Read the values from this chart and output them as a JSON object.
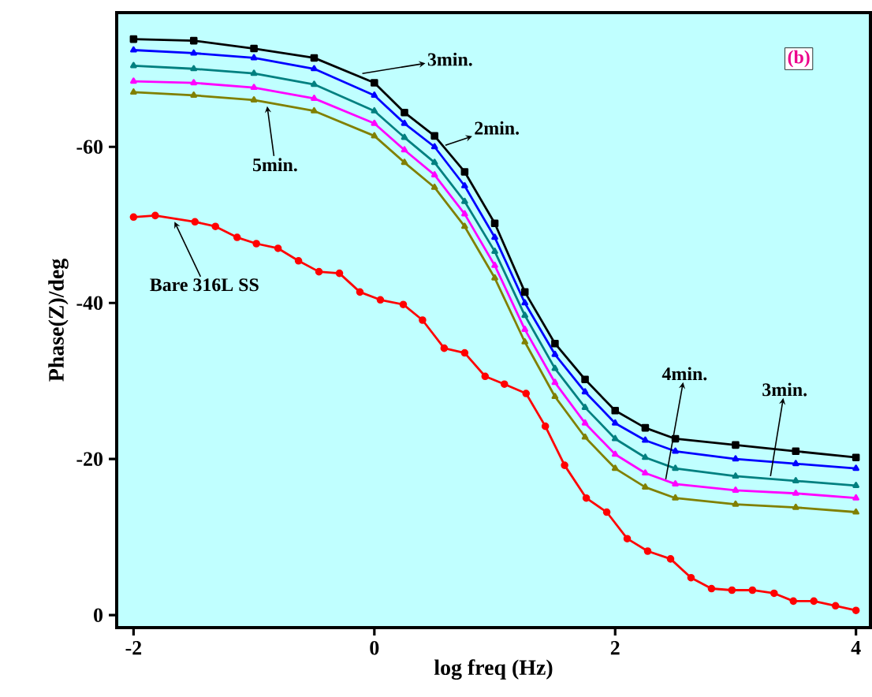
{
  "chart_data": {
    "type": "line",
    "xlabel": "log freq (Hz)",
    "ylabel": "Phase(Z)/deg",
    "x": [
      -2,
      -1.5,
      -1,
      -0.5,
      0,
      0.25,
      0.5,
      0.75,
      1,
      1.25,
      1.5,
      1.75,
      2,
      2.25,
      2.5,
      3,
      3.5,
      4
    ],
    "series": [
      {
        "color": "#000000",
        "marker": "square",
        "values": [
          -73.8,
          -73.6,
          -72.6,
          -71.4,
          -68.2,
          -64.4,
          -61.4,
          -56.8,
          -50.2,
          -41.4,
          -34.8,
          -30.2,
          -26.2,
          -24,
          -22.6,
          -21.8,
          -21,
          -20.2
        ]
      },
      {
        "color": "#0000ff",
        "marker": "triangle",
        "values": [
          -72.4,
          -72,
          -71.4,
          -70,
          -66.6,
          -63,
          -60,
          -55,
          -48.4,
          -40,
          -33.4,
          -28.6,
          -24.6,
          -22.4,
          -21,
          -20,
          -19.4,
          -18.8
        ]
      },
      {
        "color": "#008080",
        "marker": "triangle",
        "values": [
          -70.4,
          -70,
          -69.4,
          -68,
          -64.6,
          -61.2,
          -58,
          -53,
          -46.6,
          -38.4,
          -31.6,
          -26.6,
          -22.6,
          -20.2,
          -18.8,
          -17.8,
          -17.2,
          -16.6
        ]
      },
      {
        "color": "#ff00ff",
        "marker": "triangle",
        "values": [
          -68.4,
          -68.2,
          -67.6,
          -66.2,
          -63,
          -59.6,
          -56.4,
          -51.4,
          -44.8,
          -36.6,
          -29.8,
          -24.6,
          -20.6,
          -18.2,
          -16.8,
          -16,
          -15.6,
          -15
        ]
      },
      {
        "color": "#808000",
        "marker": "triangle",
        "values": [
          -67,
          -66.6,
          -66,
          -64.6,
          -61.4,
          -58,
          -54.8,
          -49.8,
          -43.2,
          -35,
          -28,
          -22.8,
          -18.8,
          -16.4,
          -15,
          -14.2,
          -13.8,
          -13.2
        ]
      },
      {
        "color": "#ff0000",
        "marker": "circle",
        "x": [
          -2,
          -1.82,
          -1.49,
          -1.32,
          -1.14,
          -0.98,
          -0.8,
          -0.63,
          -0.46,
          -0.29,
          -0.12,
          0.05,
          0.24,
          0.4,
          0.58,
          0.75,
          0.92,
          1.08,
          1.26,
          1.42,
          1.58,
          1.76,
          1.93,
          2.1,
          2.27,
          2.46,
          2.63,
          2.8,
          2.97,
          3.14,
          3.32,
          3.48,
          3.65,
          3.83,
          4
        ],
        "values": [
          -51,
          -51.2,
          -50.4,
          -49.8,
          -48.4,
          -47.6,
          -47,
          -45.4,
          -44,
          -43.8,
          -41.4,
          -40.4,
          -39.8,
          -37.8,
          -34.2,
          -33.6,
          -30.6,
          -29.6,
          -28.4,
          -24.2,
          -19.2,
          -15,
          -13.2,
          -9.8,
          -8.2,
          -7.2,
          -4.8,
          -3.4,
          -3.2,
          -3.2,
          -2.8,
          -1.8,
          -1.8,
          -1.2,
          -0.6
        ]
      }
    ],
    "xlim": [
      -2.14,
      4.12
    ],
    "ylim": [
      1.6,
      -77.2
    ],
    "xticks": [
      -2,
      0,
      2,
      4
    ],
    "yticks": [
      0,
      -20,
      -40,
      -60
    ],
    "grid": false,
    "line_style": "solid",
    "annotations": [
      "(b)",
      {
        "text": "3min.",
        "x": -0.1,
        "y": -69.4
      },
      {
        "text": "2min.",
        "x": 0.59,
        "y": -60.2
      },
      {
        "text": "5min.",
        "x": -0.89,
        "y": -65.2
      },
      {
        "text": "Bare 316L SS",
        "x": -1.66,
        "y": -50.4
      },
      {
        "text": "4min.",
        "x": 2.42,
        "y": -17.4
      },
      {
        "text": "3min.",
        "x": 3.29,
        "y": -17.8
      }
    ]
  }
}
